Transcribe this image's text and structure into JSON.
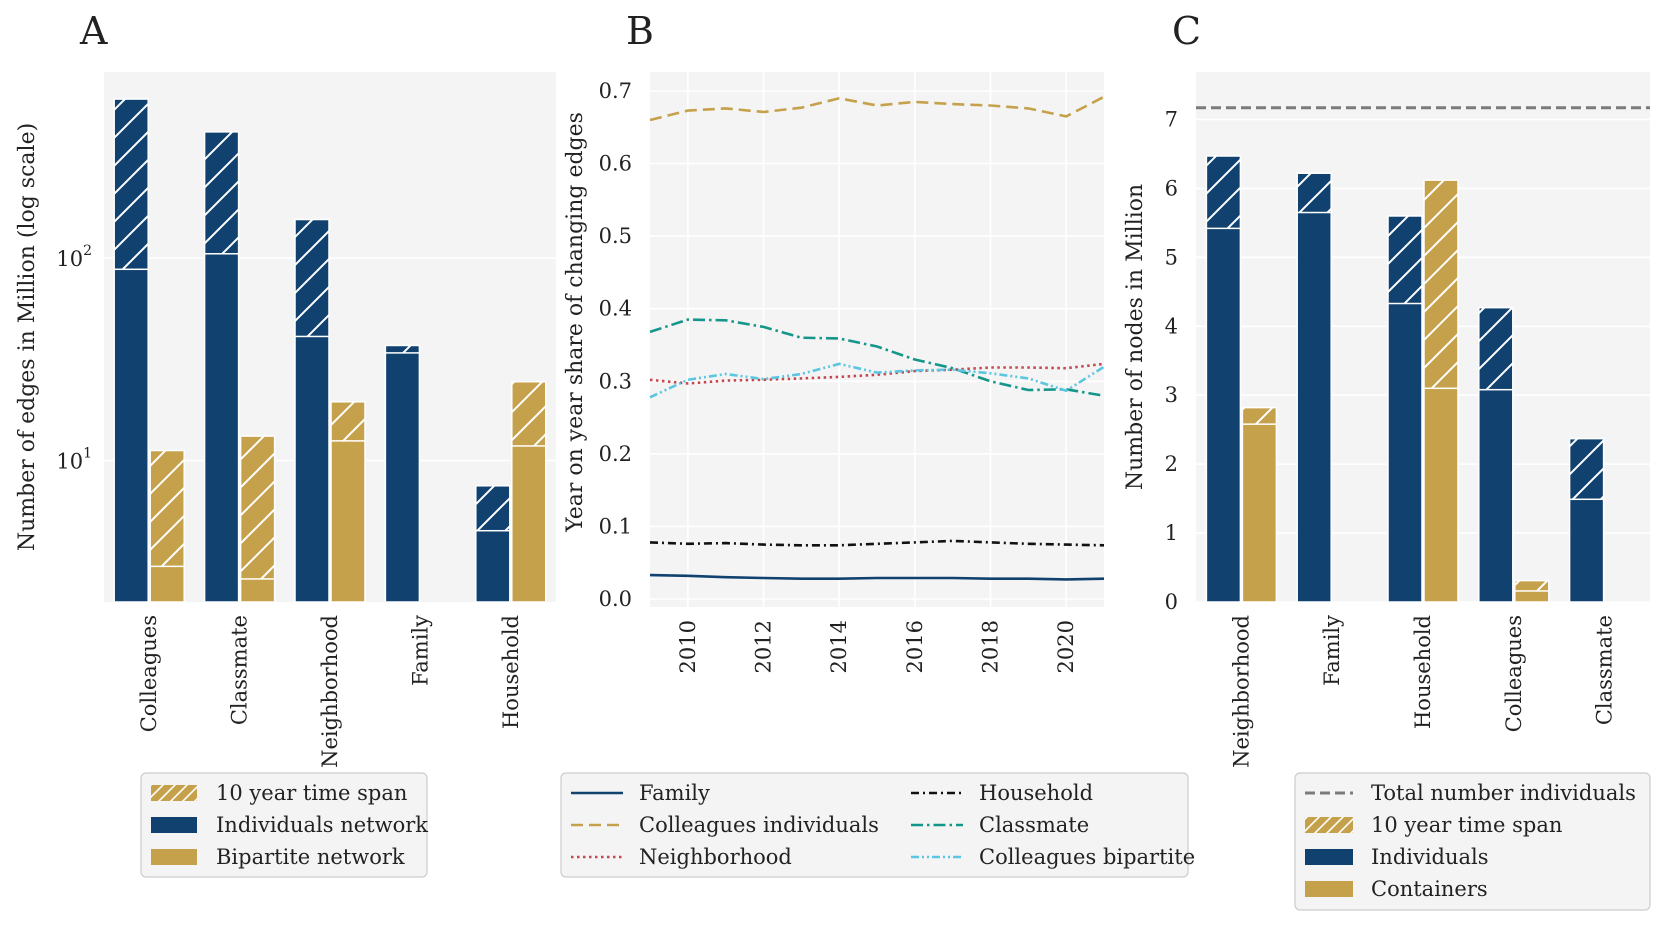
{
  "colors": {
    "navy": "#11426f",
    "gold": "#c6a14c",
    "red": "#c4474f",
    "teal": "#14968a",
    "sky": "#5ac6e2",
    "black": "#111111",
    "gray": "#7b7b7b"
  },
  "chart_data": [
    {
      "type": "bar",
      "panel": "A",
      "ylabel": "Number of edges in Million (log scale)",
      "yscale": "log",
      "ylim": [
        2.0,
        830
      ],
      "yticks": [
        {
          "v": 10,
          "base": "10",
          "exp": "1"
        },
        {
          "v": 100,
          "base": "10",
          "exp": "2"
        }
      ],
      "categories": [
        "Colleagues",
        "Classmate",
        "Neighborhood",
        "Family",
        "Household"
      ],
      "series": [
        {
          "name": "Individuals network",
          "color": "navy",
          "values": [
            88,
            105,
            41,
            34,
            4.5
          ],
          "ten_year_values": [
            610,
            420,
            155,
            37,
            7.5
          ]
        },
        {
          "name": "Bipartite network",
          "color": "gold",
          "values": [
            3.0,
            2.6,
            12.5,
            null,
            11.8
          ],
          "ten_year_values": [
            11.2,
            13.2,
            19.5,
            null,
            24.5
          ]
        }
      ],
      "legend": [
        "10 year time span",
        "Individuals network",
        "Bipartite network"
      ]
    },
    {
      "type": "line",
      "panel": "B",
      "ylabel": "Year on year share of changing edges",
      "xlim": [
        2009.0,
        2021.0
      ],
      "ylim": [
        0.0,
        0.7
      ],
      "xticks": [
        2010,
        2012,
        2014,
        2016,
        2018,
        2020
      ],
      "yticks": [
        "0.0",
        "0.1",
        "0.2",
        "0.3",
        "0.4",
        "0.5",
        "0.6",
        "0.7"
      ],
      "x": [
        2009,
        2010,
        2011,
        2012,
        2013,
        2014,
        2015,
        2016,
        2017,
        2018,
        2019,
        2020,
        2021
      ],
      "series": [
        {
          "name": "Family",
          "color": "navy",
          "dash": "",
          "values": [
            0.033,
            0.032,
            0.03,
            0.029,
            0.028,
            0.028,
            0.029,
            0.029,
            0.029,
            0.028,
            0.028,
            0.027,
            0.028
          ]
        },
        {
          "name": "Colleagues individuals",
          "color": "gold",
          "dash": "12 6",
          "values": [
            0.66,
            0.673,
            0.676,
            0.671,
            0.677,
            0.69,
            0.68,
            0.685,
            0.682,
            0.68,
            0.676,
            0.665,
            0.692
          ]
        },
        {
          "name": "Neighborhood",
          "color": "red",
          "dash": "2.5 3.5",
          "values": [
            0.302,
            0.297,
            0.301,
            0.302,
            0.304,
            0.306,
            0.309,
            0.314,
            0.316,
            0.319,
            0.319,
            0.318,
            0.324
          ]
        },
        {
          "name": "Household",
          "color": "black",
          "dash": "8 4 2 4",
          "values": [
            0.078,
            0.076,
            0.077,
            0.075,
            0.074,
            0.074,
            0.076,
            0.078,
            0.08,
            0.078,
            0.076,
            0.075,
            0.074
          ]
        },
        {
          "name": "Classmate",
          "color": "teal",
          "dash": "12 4 2.5 4",
          "values": [
            0.368,
            0.385,
            0.384,
            0.375,
            0.36,
            0.359,
            0.348,
            0.33,
            0.318,
            0.3,
            0.288,
            0.289,
            0.28
          ]
        },
        {
          "name": "Colleagues bipartite",
          "color": "sky",
          "dash": "8 3 2 3 2 3",
          "values": [
            0.278,
            0.302,
            0.31,
            0.303,
            0.31,
            0.324,
            0.312,
            0.315,
            0.316,
            0.311,
            0.304,
            0.287,
            0.32
          ]
        }
      ],
      "legend_left": [
        "Family",
        "Colleagues individuals",
        "Neighborhood"
      ],
      "legend_right": [
        "Household",
        "Classmate",
        "Colleagues bipartite"
      ]
    },
    {
      "type": "bar",
      "panel": "C",
      "ylabel": "Number of nodes in Million",
      "ylim": [
        0,
        7.5
      ],
      "yticks": [
        "0",
        "1",
        "2",
        "3",
        "4",
        "5",
        "6",
        "7"
      ],
      "reference_line": {
        "name": "Total number individuals",
        "value": 7.17
      },
      "categories": [
        "Neighborhood",
        "Family",
        "Household",
        "Colleagues",
        "Classmate"
      ],
      "series": [
        {
          "name": "Individuals",
          "color": "navy",
          "values": [
            5.42,
            5.65,
            4.33,
            3.08,
            1.49
          ],
          "ten_year_values": [
            6.47,
            6.22,
            5.6,
            4.27,
            2.37
          ]
        },
        {
          "name": "Containers",
          "color": "gold",
          "values": [
            2.58,
            null,
            3.1,
            0.16,
            null
          ],
          "ten_year_values": [
            2.82,
            null,
            6.12,
            0.31,
            null
          ]
        }
      ],
      "legend": [
        "Total number individuals",
        "10 year time span",
        "Individuals",
        "Containers"
      ]
    }
  ]
}
